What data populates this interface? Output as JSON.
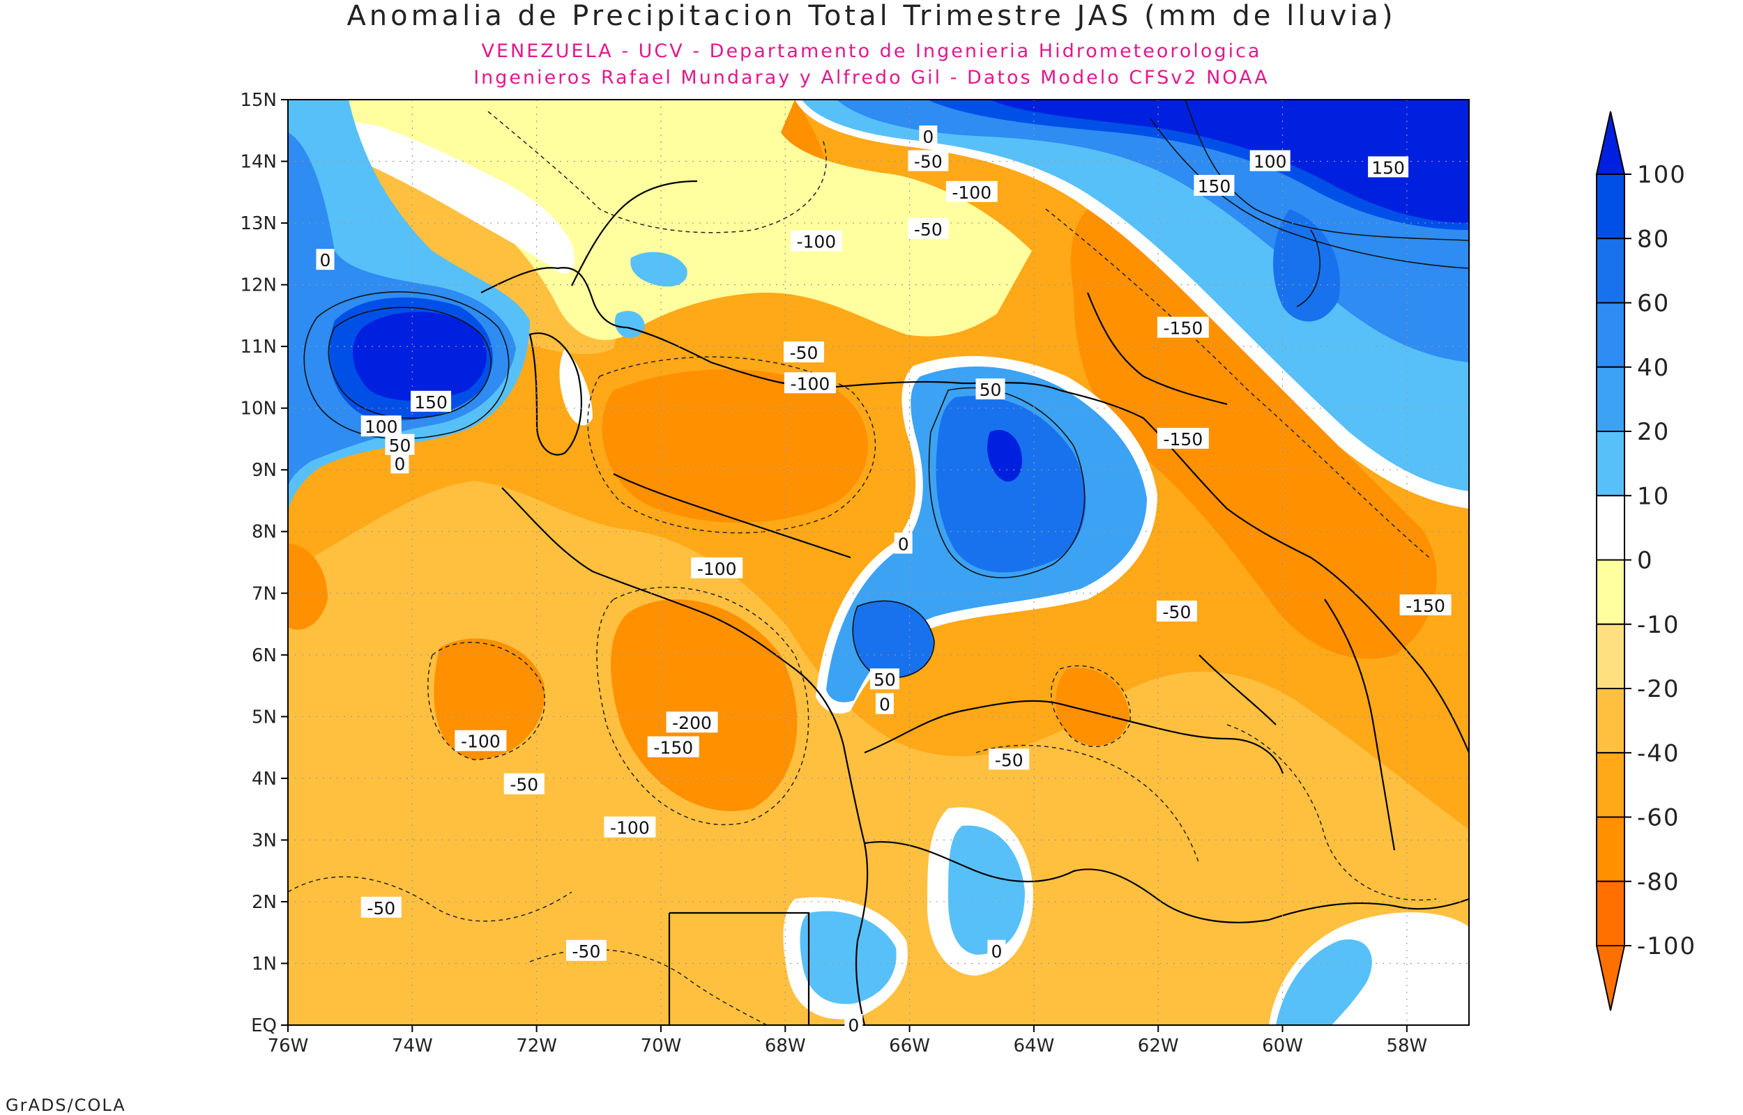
{
  "title": "Anomalia de Precipitacion Total Trimestre JAS (mm de lluvia)",
  "subtitle_1": "VENEZUELA - UCV - Departamento de Ingenieria Hidrometeorologica",
  "subtitle_2": "Ingenieros Rafael Mundaray y Alfredo Gil - Datos Modelo CFSv2 NOAA",
  "credit": "GrADS/COLA",
  "map": {
    "lon_range": [
      -76,
      -57
    ],
    "lat_range": [
      0,
      15
    ],
    "lon_ticks": [
      "76W",
      "74W",
      "72W",
      "70W",
      "68W",
      "66W",
      "64W",
      "62W",
      "60W",
      "58W"
    ],
    "lat_ticks": [
      "EQ",
      "1N",
      "2N",
      "3N",
      "4N",
      "5N",
      "6N",
      "7N",
      "8N",
      "9N",
      "10N",
      "11N",
      "12N",
      "13N",
      "14N",
      "15N"
    ],
    "grid": "dotted",
    "background_color": "#ffa000"
  },
  "colorbar": {
    "labels": [
      "100",
      "80",
      "60",
      "40",
      "20",
      "10",
      "0",
      "-10",
      "-20",
      "-40",
      "-60",
      "-80",
      "-100"
    ],
    "colors": [
      "#0020e0",
      "#0050e8",
      "#1872ee",
      "#2e8cf2",
      "#3ca2f4",
      "#58c0f8",
      "#ffffff",
      "#ffffa0",
      "#ffe080",
      "#ffc040",
      "#ffa818",
      "#ff9000",
      "#ff7000"
    ]
  },
  "contour_labels": [
    {
      "text": "0",
      "lon": -75.4,
      "lat": 12.4
    },
    {
      "text": "150",
      "lon": -73.7,
      "lat": 10.1
    },
    {
      "text": "100",
      "lon": -74.5,
      "lat": 9.7
    },
    {
      "text": "50",
      "lon": -74.2,
      "lat": 9.4
    },
    {
      "text": "0",
      "lon": -74.2,
      "lat": 9.1
    },
    {
      "text": "0",
      "lon": -65.7,
      "lat": 14.4
    },
    {
      "text": "-50",
      "lon": -65.7,
      "lat": 14.0
    },
    {
      "text": "-100",
      "lon": -65.0,
      "lat": 13.5
    },
    {
      "text": "-50",
      "lon": -65.7,
      "lat": 12.9
    },
    {
      "text": "-100",
      "lon": -67.5,
      "lat": 12.7
    },
    {
      "text": "100",
      "lon": -60.2,
      "lat": 14.0
    },
    {
      "text": "150",
      "lon": -61.1,
      "lat": 13.6
    },
    {
      "text": "150",
      "lon": -58.3,
      "lat": 13.9
    },
    {
      "text": "-150",
      "lon": -61.6,
      "lat": 11.3
    },
    {
      "text": "-50",
      "lon": -67.7,
      "lat": 10.9
    },
    {
      "text": "-100",
      "lon": -67.6,
      "lat": 10.4
    },
    {
      "text": "50",
      "lon": -64.7,
      "lat": 10.3
    },
    {
      "text": "-150",
      "lon": -61.6,
      "lat": 9.5
    },
    {
      "text": "0",
      "lon": -66.1,
      "lat": 7.8
    },
    {
      "text": "-100",
      "lon": -69.1,
      "lat": 7.4
    },
    {
      "text": "-50",
      "lon": -61.7,
      "lat": 6.7
    },
    {
      "text": "-150",
      "lon": -57.7,
      "lat": 6.8
    },
    {
      "text": "50",
      "lon": -66.4,
      "lat": 5.6
    },
    {
      "text": "0",
      "lon": -66.4,
      "lat": 5.2
    },
    {
      "text": "-200",
      "lon": -69.5,
      "lat": 4.9
    },
    {
      "text": "-150",
      "lon": -69.8,
      "lat": 4.5
    },
    {
      "text": "-100",
      "lon": -72.9,
      "lat": 4.6
    },
    {
      "text": "-50",
      "lon": -64.4,
      "lat": 4.3
    },
    {
      "text": "-50",
      "lon": -72.2,
      "lat": 3.9
    },
    {
      "text": "-100",
      "lon": -70.5,
      "lat": 3.2
    },
    {
      "text": "-50",
      "lon": -74.5,
      "lat": 1.9
    },
    {
      "text": "-50",
      "lon": -71.2,
      "lat": 1.2
    },
    {
      "text": "0",
      "lon": -64.6,
      "lat": 1.2
    },
    {
      "text": "0",
      "lon": -66.9,
      "lat": 0.0
    }
  ]
}
